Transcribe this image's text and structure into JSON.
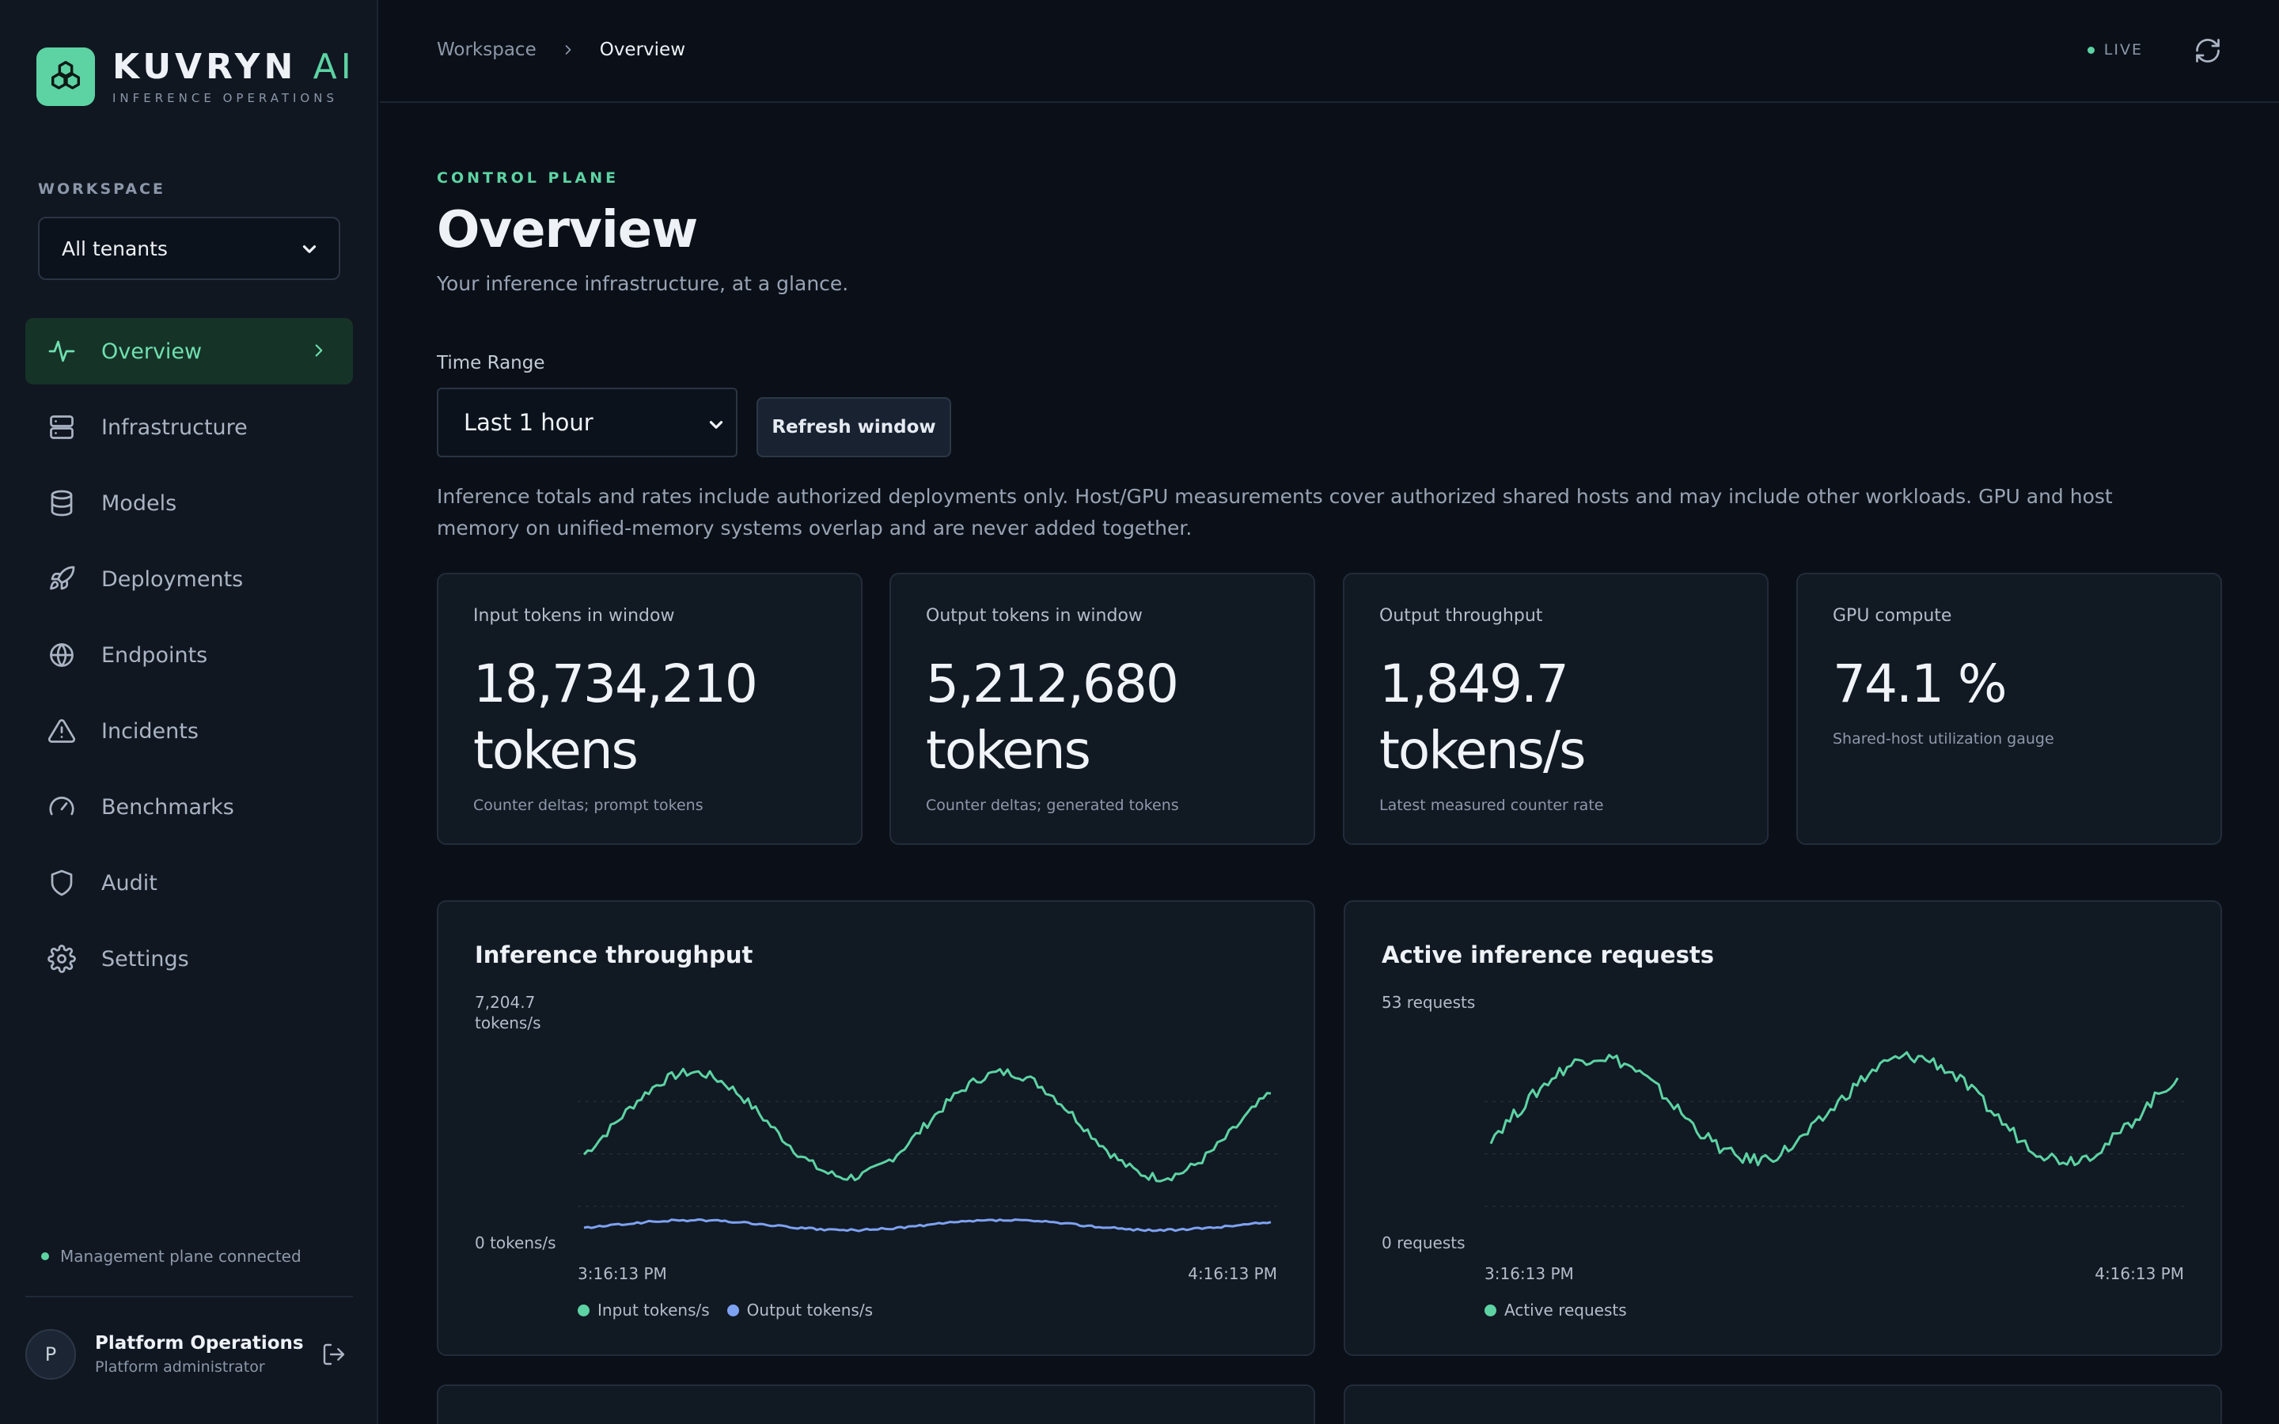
{
  "brand": {
    "name": "KUVRYN",
    "ai": "AI",
    "subtitle": "INFERENCE OPERATIONS",
    "color": "#5dd3a3"
  },
  "workspace": {
    "label": "WORKSPACE",
    "selected": "All tenants"
  },
  "nav": [
    {
      "label": "Overview",
      "icon": "activity-icon",
      "active": true
    },
    {
      "label": "Infrastructure",
      "icon": "server-icon"
    },
    {
      "label": "Models",
      "icon": "database-icon"
    },
    {
      "label": "Deployments",
      "icon": "rocket-icon"
    },
    {
      "label": "Endpoints",
      "icon": "globe-icon"
    },
    {
      "label": "Incidents",
      "icon": "alert-triangle-icon"
    },
    {
      "label": "Benchmarks",
      "icon": "gauge-icon"
    },
    {
      "label": "Audit",
      "icon": "shield-icon"
    },
    {
      "label": "Settings",
      "icon": "gear-icon"
    }
  ],
  "status": {
    "management": "Management plane connected"
  },
  "user": {
    "initial": "P",
    "name": "Platform Operations",
    "role": "Platform administrator"
  },
  "topbar": {
    "crumb_root": "Workspace",
    "crumb_current": "Overview",
    "live": "LIVE"
  },
  "page": {
    "eyebrow": "CONTROL PLANE",
    "title": "Overview",
    "subtitle": "Your inference infrastructure, at a glance.",
    "time_range_label": "Time Range",
    "time_range_value": "Last 1 hour",
    "refresh_label": "Refresh window",
    "note": "Inference totals and rates include authorized deployments only. Host/GPU measurements cover authorized shared hosts and may include other workloads. GPU and host memory on unified-memory systems overlap and are never added together."
  },
  "kpis": [
    {
      "label": "Input tokens in window",
      "value": "18,734,210 tokens",
      "note": "Counter deltas; prompt tokens"
    },
    {
      "label": "Output tokens in window",
      "value": "5,212,680 tokens",
      "note": "Counter deltas; generated tokens"
    },
    {
      "label": "Output throughput",
      "value": "1,849.7 tokens/s",
      "note": "Latest measured counter rate"
    },
    {
      "label": "GPU compute",
      "value": "74.1 %",
      "note": "Shared-host utilization gauge"
    }
  ],
  "chart_data": [
    {
      "type": "line",
      "title": "Inference throughput",
      "ymax_label": "7,204.7 tokens/s",
      "ymin_label": "0 tokens/s",
      "ylim": [
        0,
        7204.7
      ],
      "x_start": "3:16:13 PM",
      "x_end": "4:16:13 PM",
      "legend": "bottom-left",
      "series": [
        {
          "name": "Input tokens/s",
          "color": "#5dd3a3",
          "wave": {
            "base": 4600,
            "amp": 1800,
            "cycles": 2.2,
            "phase": -0.6,
            "noise": 160
          }
        },
        {
          "name": "Output tokens/s",
          "color": "#7ea2f2",
          "wave": {
            "base": 1150,
            "amp": 170,
            "cycles": 2.2,
            "phase": -0.6,
            "noise": 35
          }
        }
      ]
    },
    {
      "type": "line",
      "title": "Active inference requests",
      "ymax_label": "53 requests",
      "ymin_label": "0 requests",
      "ylim": [
        0,
        53
      ],
      "x_start": "3:16:13 PM",
      "x_end": "4:16:13 PM",
      "legend": "bottom-left",
      "series": [
        {
          "name": "Active requests",
          "color": "#5dd3a3",
          "wave": {
            "base": 38,
            "amp": 13,
            "cycles": 2.2,
            "phase": -0.6,
            "noise": 1.6
          }
        }
      ]
    }
  ]
}
